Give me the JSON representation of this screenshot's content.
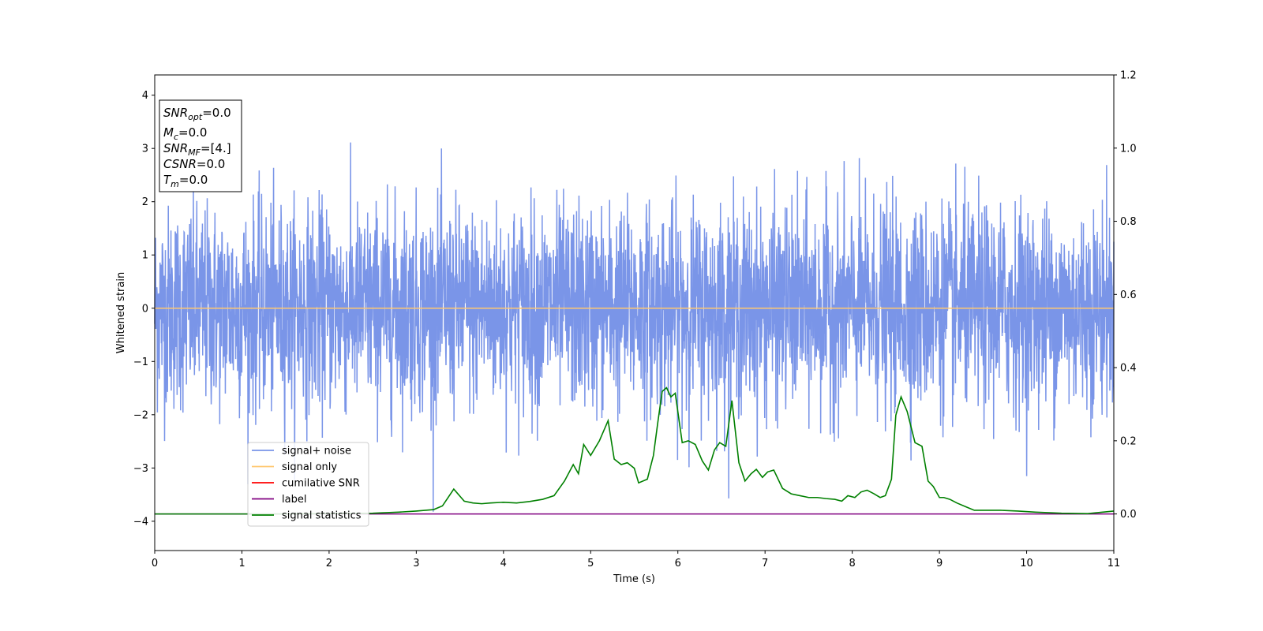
{
  "chart_data": {
    "type": "line",
    "title": "",
    "xlabel": "Time (s)",
    "ylabel": "Whitened strain",
    "xlim": [
      0,
      11
    ],
    "ylim": [
      -4.55,
      4.38
    ],
    "ylim_right": [
      -0.1,
      1.2
    ],
    "x_ticks": [
      "0",
      "1",
      "2",
      "3",
      "4",
      "5",
      "6",
      "7",
      "8",
      "9",
      "10",
      "11"
    ],
    "y_ticks": [
      "4",
      "3",
      "2",
      "1",
      "0",
      "−1",
      "−2",
      "−3",
      "−4"
    ],
    "y_ticks_right": [
      "1.2",
      "1.0",
      "0.8",
      "0.6",
      "0.4",
      "0.2",
      "0.0"
    ],
    "grid": false,
    "legend_position": "lower-left",
    "info_box": {
      "lines": [
        {
          "main": "SNR",
          "sub": "opt",
          "rest": "=0.0"
        },
        {
          "main": "M",
          "sub": "c",
          "rest": "=0.0"
        },
        {
          "main": "SNR",
          "sub": "MF",
          "rest": "=[4.]"
        },
        {
          "main": "CSNR",
          "sub": "",
          "rest": "=0.0"
        },
        {
          "main": "T",
          "sub": "m",
          "rest": "=0.0"
        }
      ]
    },
    "series": [
      {
        "name": "signal+ noise",
        "color": "#7a95e8",
        "axis": "left",
        "style": "noise",
        "amplitude_std": 0.95
      },
      {
        "name": "signal only",
        "color": "#ffc870",
        "axis": "left",
        "x": [
          0,
          11
        ],
        "y": [
          0,
          0
        ]
      },
      {
        "name": "cumilative SNR",
        "color": "#ff0000",
        "axis": "left",
        "x": [],
        "y": []
      },
      {
        "name": "label",
        "color": "#800080",
        "axis": "right",
        "x": [
          0,
          11
        ],
        "y": [
          0,
          0
        ]
      },
      {
        "name": "signal statistics",
        "color": "#008000",
        "axis": "right",
        "x": [
          0,
          0.5,
          1.0,
          1.5,
          2.0,
          2.5,
          2.8,
          3.0,
          3.2,
          3.3,
          3.43,
          3.55,
          3.65,
          3.75,
          3.85,
          4.0,
          4.15,
          4.3,
          4.45,
          4.58,
          4.7,
          4.8,
          4.86,
          4.92,
          5.0,
          5.1,
          5.2,
          5.27,
          5.35,
          5.42,
          5.5,
          5.55,
          5.65,
          5.72,
          5.77,
          5.82,
          5.87,
          5.92,
          5.97,
          6.05,
          6.12,
          6.2,
          6.28,
          6.35,
          6.42,
          6.48,
          6.55,
          6.62,
          6.7,
          6.77,
          6.84,
          6.9,
          6.97,
          7.03,
          7.1,
          7.2,
          7.3,
          7.4,
          7.5,
          7.6,
          7.7,
          7.8,
          7.88,
          7.95,
          8.03,
          8.1,
          8.17,
          8.25,
          8.32,
          8.38,
          8.45,
          8.5,
          8.56,
          8.63,
          8.72,
          8.8,
          8.87,
          8.93,
          9.0,
          9.05,
          9.12,
          9.2,
          9.3,
          9.4,
          9.5,
          9.7,
          9.9,
          10.1,
          10.4,
          10.7,
          11.0
        ],
        "y": [
          0.0,
          0.0,
          0.0,
          0.0,
          0.001,
          0.002,
          0.005,
          0.008,
          0.012,
          0.022,
          0.068,
          0.035,
          0.03,
          0.028,
          0.03,
          0.032,
          0.03,
          0.034,
          0.04,
          0.05,
          0.09,
          0.135,
          0.11,
          0.19,
          0.16,
          0.2,
          0.255,
          0.15,
          0.135,
          0.14,
          0.125,
          0.085,
          0.095,
          0.16,
          0.25,
          0.335,
          0.345,
          0.32,
          0.33,
          0.195,
          0.2,
          0.19,
          0.145,
          0.12,
          0.175,
          0.195,
          0.185,
          0.31,
          0.14,
          0.09,
          0.11,
          0.122,
          0.1,
          0.115,
          0.12,
          0.07,
          0.055,
          0.05,
          0.045,
          0.045,
          0.042,
          0.04,
          0.035,
          0.05,
          0.045,
          0.06,
          0.065,
          0.055,
          0.045,
          0.05,
          0.095,
          0.27,
          0.32,
          0.28,
          0.195,
          0.185,
          0.09,
          0.075,
          0.045,
          0.045,
          0.04,
          0.03,
          0.02,
          0.01,
          0.01,
          0.01,
          0.008,
          0.005,
          0.002,
          0.001,
          0.008
        ]
      }
    ]
  }
}
